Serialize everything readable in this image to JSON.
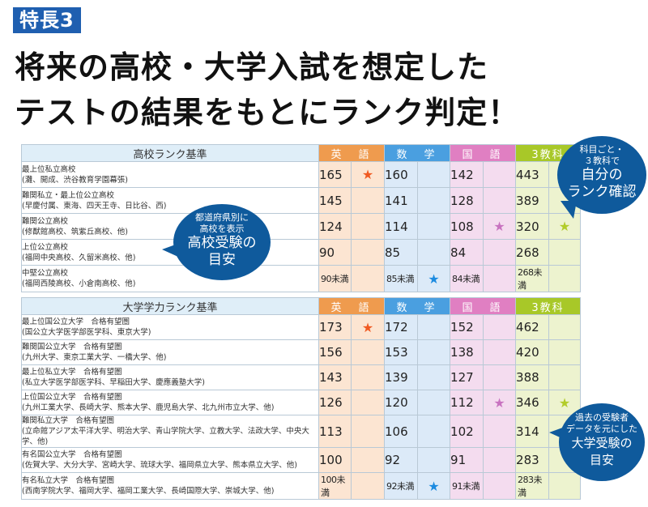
{
  "header": {
    "badge": "特長3",
    "line1": "将来の高校・大学入試を想定した",
    "line2": "テストの結果をもとにランク判定！"
  },
  "subjects": [
    "英　語",
    "数　学",
    "国　語",
    "3教科"
  ],
  "highschool": {
    "title": "高校ランク基準",
    "rows": [
      {
        "l1": "最上位私立高校",
        "l2": "(灘、開成、渋谷教育学園幕張)",
        "en": "165",
        "ma": "160",
        "ja": "142",
        "tt": "443",
        "star": [
          "en"
        ]
      },
      {
        "l1": "難関私立・最上位公立高校",
        "l2": "(早慶付属、東海、四天王寺、日比谷、西)",
        "en": "145",
        "ma": "141",
        "ja": "128",
        "tt": "389",
        "star": []
      },
      {
        "l1": "難関公立高校",
        "l2": "(修猷館高校、筑紫丘高校、他)",
        "en": "124",
        "ma": "114",
        "ja": "108",
        "tt": "320",
        "star": [
          "ja",
          "tt"
        ]
      },
      {
        "l1": "上位公立高校",
        "l2": "(福岡中央高校、久留米高校、他)",
        "en": "90",
        "ma": "85",
        "ja": "84",
        "tt": "268",
        "star": []
      },
      {
        "l1": "中堅公立高校",
        "l2": "(福岡西陵高校、小倉南高校、他)",
        "en": "90未満",
        "ma": "85未満",
        "ja": "84未満",
        "tt": "268未満",
        "star": [
          "ma"
        ]
      }
    ]
  },
  "university": {
    "title": "大学学力ランク基準",
    "rows": [
      {
        "l1": "最上位国公立大学　合格有望圏",
        "l2": "(国公立大学医学部医学科、東京大学)",
        "en": "173",
        "ma": "172",
        "ja": "152",
        "tt": "462",
        "star": [
          "en"
        ]
      },
      {
        "l1": "難関国公立大学　合格有望圏",
        "l2": "(九州大学、東京工業大学、一橋大学、他)",
        "en": "156",
        "ma": "153",
        "ja": "138",
        "tt": "420",
        "star": []
      },
      {
        "l1": "最上位私立大学　合格有望圏",
        "l2": "(私立大学医学部医学科、早稲田大学、慶應義塾大学)",
        "en": "143",
        "ma": "139",
        "ja": "127",
        "tt": "388",
        "star": []
      },
      {
        "l1": "上位国公立大学　合格有望圏",
        "l2": "(九州工業大学、長崎大学、熊本大学、鹿児島大学、北九州市立大学、他)",
        "en": "126",
        "ma": "120",
        "ja": "112",
        "tt": "346",
        "star": [
          "ja",
          "tt"
        ]
      },
      {
        "l1": "難関私立大学　合格有望圏",
        "l2": "(立命館アジア太平洋大学、明治大学、青山学院大学、立教大学、法政大学、中央大学、他)",
        "en": "113",
        "ma": "106",
        "ja": "102",
        "tt": "314",
        "star": []
      },
      {
        "l1": "有名国公立大学　合格有望圏",
        "l2": "(佐賀大学、大分大学、宮崎大学、琉球大学、福岡県立大学、熊本県立大学、他)",
        "en": "100",
        "ma": "92",
        "ja": "91",
        "tt": "283",
        "star": []
      },
      {
        "l1": "有名私立大学　合格有望圏",
        "l2": "(西南学院大学、福岡大学、福岡工業大学、長崎国際大学、崇城大学、他)",
        "en": "100未満",
        "ma": "92未満",
        "ja": "91未満",
        "tt": "283未満",
        "star": [
          "ma"
        ]
      }
    ]
  },
  "bubbles": {
    "subject": {
      "small1": "科目ごと・",
      "small2": "３教科で",
      "large1": "自分の",
      "large2": "ランク確認"
    },
    "hs": {
      "small1": "都道府県別に",
      "small2": "高校を表示",
      "large1": "高校受験の",
      "large2": "目安"
    },
    "univ": {
      "small1": "過去の受験者",
      "small2": "データを元にした",
      "large1": "大学受験の",
      "large2": "目安"
    }
  },
  "star_glyph": "★",
  "colors": {
    "badge": "#1f5fb0",
    "bubble": "#0f5a9c",
    "english": "#ef9b4e",
    "math": "#4a9fe0",
    "japanese": "#e07fc2",
    "total": "#a8c828"
  }
}
